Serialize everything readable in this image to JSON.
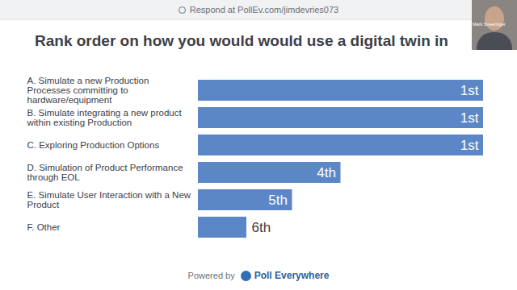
{
  "header": "Respond at PollEv.com/jimdevries073",
  "presenter": "Mark Sneeringer",
  "footer_prefix": "Powered by",
  "footer_brand": "Poll Everywhere",
  "chart_data": {
    "type": "bar",
    "orientation": "horizontal",
    "title": "Rank order on how you would would use a digital twin in",
    "categories": [
      "A. Simulate a new Production Processes committing to hardware/equipment",
      "B. Simulate integrating a new product within existing Production",
      "C. Exploring Production Options",
      "D. Simulation of Product Performance through EOL",
      "E. Simulate User Interaction with a New Product",
      "F. Other"
    ],
    "values": [
      100,
      100,
      100,
      50,
      33,
      17
    ],
    "rank_labels": [
      "1st",
      "1st",
      "1st",
      "4th",
      "5th",
      "6th"
    ],
    "color": "#5b87c6",
    "xlim": [
      0,
      100
    ],
    "tick_labels": false,
    "grid": false
  }
}
